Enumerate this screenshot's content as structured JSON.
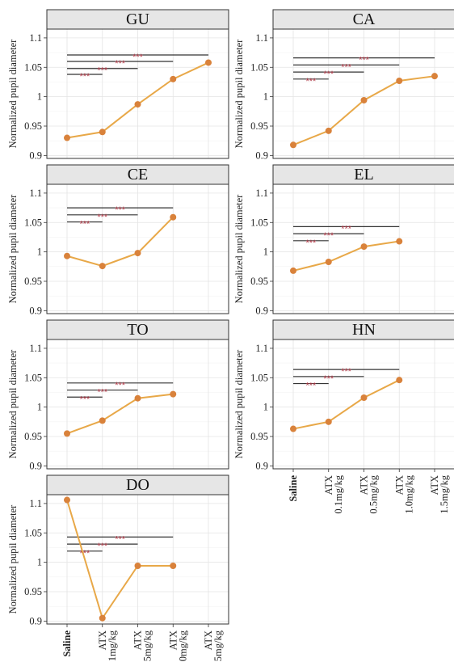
{
  "chart_data": {
    "type": "line",
    "ylabel": "Normalized pupil diameter",
    "x_labels": [
      {
        "line1": "Saline",
        "line2": "",
        "bold": true
      },
      {
        "line1": "ATX",
        "line2": "0.1mg/kg",
        "bold": false
      },
      {
        "line1": "ATX",
        "line2": "0.5mg/kg",
        "bold": false
      },
      {
        "line1": "ATX",
        "line2": "1.0mg/kg",
        "bold": false
      },
      {
        "line1": "ATX",
        "line2": "1.5mg/kg",
        "bold": false
      }
    ],
    "x_labels_clipped": [
      {
        "line1": "Saline",
        "line2": "",
        "bold": true
      },
      {
        "line1": "ATX",
        "line2": ".1mg/kg",
        "bold": false
      },
      {
        "line1": "ATX",
        "line2": ".5mg/kg",
        "bold": false
      },
      {
        "line1": "ATX",
        "line2": ".0mg/kg",
        "bold": false
      },
      {
        "line1": "ATX",
        "line2": ".5mg/kg",
        "bold": false
      }
    ],
    "y_ticks": [
      0.9,
      0.95,
      1,
      1.05,
      1.1
    ],
    "y_tick_labels": [
      "0.9",
      "0.95",
      "1",
      "1.05",
      "1.1"
    ],
    "ylim": [
      0.895,
      1.115
    ],
    "line_color": "#e8a848",
    "point_color": "#d9823b",
    "bracket_color": "#333333",
    "star_color": "#b03a48",
    "significance_label": "***",
    "panels": [
      {
        "name": "GU",
        "values": [
          0.93,
          0.94,
          0.987,
          1.03,
          1.058
        ],
        "brackets": [
          {
            "to": 1,
            "y": 1.038
          },
          {
            "to": 2,
            "y": 1.048
          },
          {
            "to": 3,
            "y": 1.06
          },
          {
            "to": 4,
            "y": 1.071
          }
        ]
      },
      {
        "name": "CA",
        "values": [
          0.918,
          0.942,
          0.994,
          1.027,
          1.035
        ],
        "brackets": [
          {
            "to": 1,
            "y": 1.03
          },
          {
            "to": 2,
            "y": 1.042
          },
          {
            "to": 3,
            "y": 1.054
          },
          {
            "to": 4,
            "y": 1.066
          }
        ]
      },
      {
        "name": "CE",
        "values": [
          0.993,
          0.976,
          0.998,
          1.059
        ],
        "brackets": [
          {
            "to": 1,
            "y": 1.051
          },
          {
            "to": 2,
            "y": 1.063
          },
          {
            "to": 3,
            "y": 1.075
          }
        ]
      },
      {
        "name": "EL",
        "values": [
          0.968,
          0.983,
          1.009,
          1.018
        ],
        "brackets": [
          {
            "to": 1,
            "y": 1.019
          },
          {
            "to": 2,
            "y": 1.031
          },
          {
            "to": 3,
            "y": 1.043
          }
        ]
      },
      {
        "name": "TO",
        "values": [
          0.955,
          0.977,
          1.015,
          1.022
        ],
        "brackets": [
          {
            "to": 1,
            "y": 1.017
          },
          {
            "to": 2,
            "y": 1.029
          },
          {
            "to": 3,
            "y": 1.041
          }
        ]
      },
      {
        "name": "HN",
        "values": [
          0.963,
          0.975,
          1.016,
          1.046
        ],
        "brackets": [
          {
            "to": 1,
            "y": 1.04
          },
          {
            "to": 2,
            "y": 1.052
          },
          {
            "to": 3,
            "y": 1.064
          }
        ]
      },
      {
        "name": "DO",
        "values": [
          1.106,
          0.905,
          0.994,
          0.994
        ],
        "brackets": [
          {
            "to": 1,
            "y": 1.019
          },
          {
            "to": 2,
            "y": 1.031
          },
          {
            "to": 3,
            "y": 1.043
          }
        ]
      }
    ]
  }
}
